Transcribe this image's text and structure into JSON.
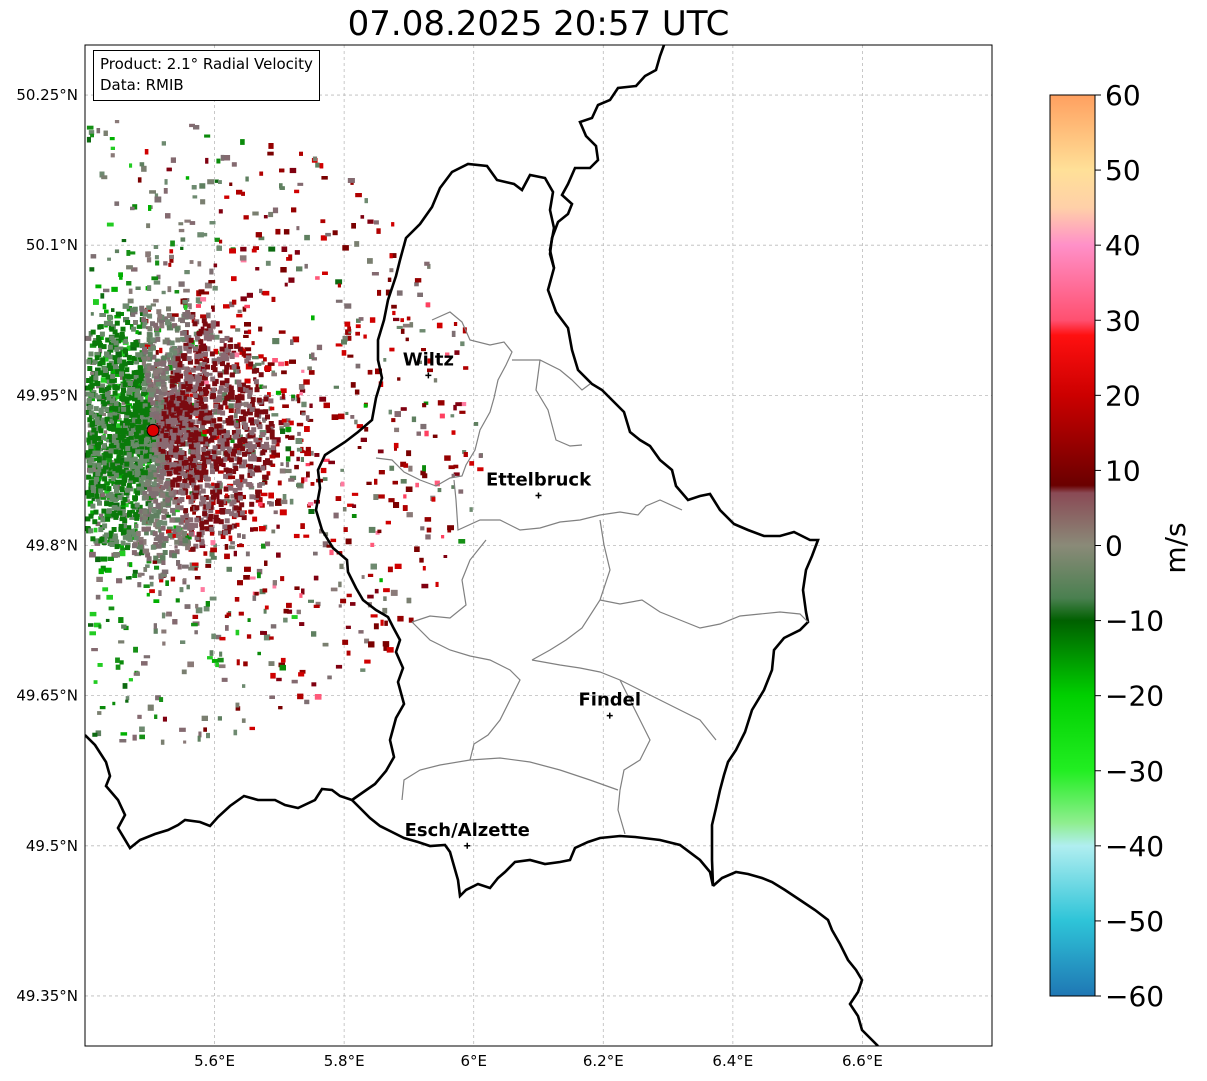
{
  "title": "07.08.2025 20:57 UTC",
  "info": {
    "product": "Product: 2.1° Radial Velocity",
    "source": "Data: RMIB"
  },
  "map": {
    "lon_range": [
      5.4,
      6.8
    ],
    "lat_range": [
      49.3,
      50.3
    ],
    "gridlines": true,
    "lon_ticks": [
      {
        "value": 5.6,
        "label": "5.6°E"
      },
      {
        "value": 5.8,
        "label": "5.8°E"
      },
      {
        "value": 6.0,
        "label": "6°E"
      },
      {
        "value": 6.2,
        "label": "6.2°E"
      },
      {
        "value": 6.4,
        "label": "6.4°E"
      },
      {
        "value": 6.6,
        "label": "6.6°E"
      }
    ],
    "lat_ticks": [
      {
        "value": 50.25,
        "label": "50.25°N"
      },
      {
        "value": 50.1,
        "label": "50.1°N"
      },
      {
        "value": 49.95,
        "label": "49.95°N"
      },
      {
        "value": 49.8,
        "label": "49.8°N"
      },
      {
        "value": 49.65,
        "label": "49.65°N"
      },
      {
        "value": 49.5,
        "label": "49.5°N"
      },
      {
        "value": 49.35,
        "label": "49.35°N"
      }
    ],
    "cities": [
      {
        "name": "Wiltz",
        "lon": 5.93,
        "lat": 49.97
      },
      {
        "name": "Ettelbruck",
        "lon": 6.1,
        "lat": 49.85
      },
      {
        "name": "Findel",
        "lon": 6.21,
        "lat": 49.63
      },
      {
        "name": "Esch/Alzette",
        "lon": 5.99,
        "lat": 49.5
      }
    ],
    "radar_site": {
      "lon": 5.505,
      "lat": 49.915,
      "color": "#dd0000"
    }
  },
  "colorbar": {
    "unit": "m/s",
    "min": -60,
    "max": 60,
    "ticks": [
      {
        "value": 60,
        "label": "60"
      },
      {
        "value": 50,
        "label": "50"
      },
      {
        "value": 40,
        "label": "40"
      },
      {
        "value": 30,
        "label": "30"
      },
      {
        "value": 20,
        "label": "20"
      },
      {
        "value": 10,
        "label": "10"
      },
      {
        "value": 0,
        "label": "0"
      },
      {
        "value": -10,
        "label": "−10"
      },
      {
        "value": -20,
        "label": "−20"
      },
      {
        "value": -30,
        "label": "−30"
      },
      {
        "value": -40,
        "label": "−40"
      },
      {
        "value": -50,
        "label": "−50"
      },
      {
        "value": -60,
        "label": "−60"
      }
    ],
    "stops": [
      {
        "value": -60,
        "color": "#1f77b4"
      },
      {
        "value": -50,
        "color": "#2ec4d8"
      },
      {
        "value": -40,
        "color": "#b0eef0"
      },
      {
        "value": -37,
        "color": "#90ee90"
      },
      {
        "value": -30,
        "color": "#22ee22"
      },
      {
        "value": -20,
        "color": "#00d000"
      },
      {
        "value": -10,
        "color": "#006000"
      },
      {
        "value": -7,
        "color": "#4a8050"
      },
      {
        "value": 0,
        "color": "#8a8a78"
      },
      {
        "value": 7,
        "color": "#8a4a55"
      },
      {
        "value": 8,
        "color": "#6a0000"
      },
      {
        "value": 20,
        "color": "#cc0000"
      },
      {
        "value": 28,
        "color": "#ff1010"
      },
      {
        "value": 30,
        "color": "#ff5070"
      },
      {
        "value": 40,
        "color": "#ff90c8"
      },
      {
        "value": 45,
        "color": "#ffd0a8"
      },
      {
        "value": 50,
        "color": "#ffe098"
      },
      {
        "value": 60,
        "color": "#ffa060"
      }
    ]
  }
}
